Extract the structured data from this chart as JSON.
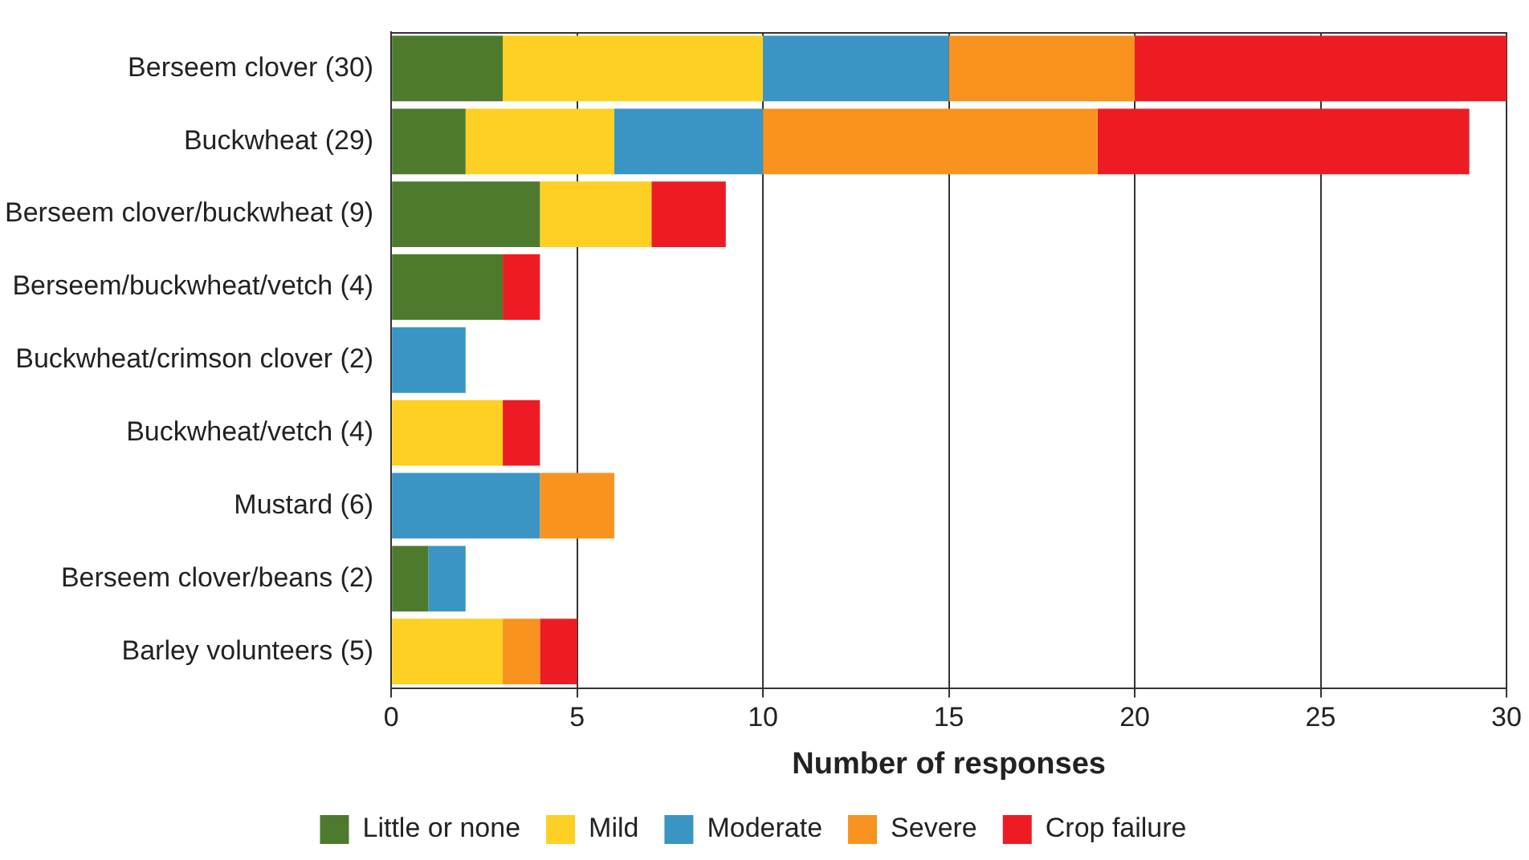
{
  "chart_data": {
    "type": "bar",
    "orientation": "horizontal",
    "stacked": true,
    "xlabel": "Number of responses",
    "categories": [
      "Berseem clover (30)",
      "Buckwheat (29)",
      "Berseem clover/buckwheat (9)",
      "Berseem/buckwheat/vetch (4)",
      "Buckwheat/crimson clover (2)",
      "Buckwheat/vetch (4)",
      "Mustard (6)",
      "Berseem clover/beans (2)",
      "Barley volunteers (5)"
    ],
    "series": [
      {
        "name": "Little or none",
        "color": "#4e7a2e",
        "values": [
          3,
          2,
          4,
          3,
          0,
          0,
          0,
          1,
          0
        ]
      },
      {
        "name": "Mild",
        "color": "#fdd023",
        "values": [
          7,
          4,
          3,
          0,
          0,
          3,
          0,
          0,
          3
        ]
      },
      {
        "name": "Moderate",
        "color": "#3a95c4",
        "values": [
          5,
          4,
          0,
          0,
          2,
          0,
          4,
          1,
          0
        ]
      },
      {
        "name": "Severe",
        "color": "#f7931e",
        "values": [
          5,
          9,
          0,
          0,
          0,
          0,
          2,
          0,
          1
        ]
      },
      {
        "name": "Crop failure",
        "color": "#ed1c24",
        "values": [
          10,
          10,
          2,
          1,
          0,
          1,
          0,
          0,
          1
        ]
      }
    ],
    "xlim": [
      0,
      30
    ],
    "xticks": [
      0,
      5,
      10,
      15,
      20,
      25,
      30
    ],
    "grid": "x",
    "legend": "bottom"
  }
}
